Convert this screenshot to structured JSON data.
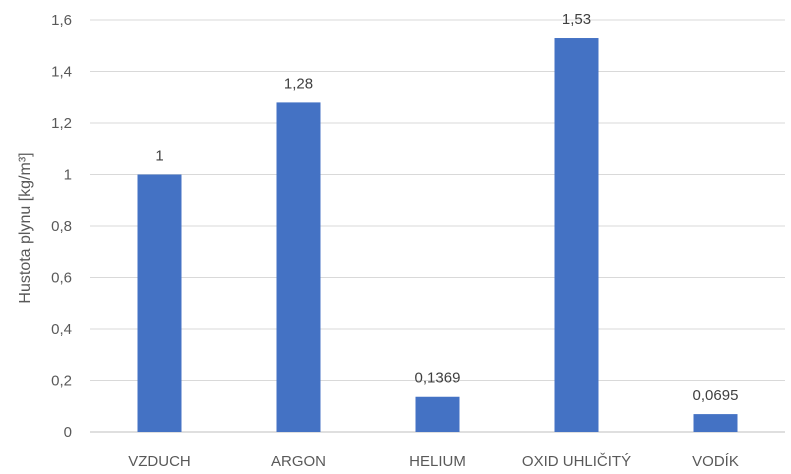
{
  "chart_data": {
    "type": "bar",
    "categories": [
      "VZDUCH",
      "ARGON",
      "HELIUM",
      "OXID UHLIČITÝ",
      "VODÍK"
    ],
    "values": [
      1,
      1.28,
      0.1369,
      1.53,
      0.0695
    ],
    "data_labels": [
      "1",
      "1,28",
      "0,1369",
      "1,53",
      "0,0695"
    ],
    "ylabel": "Hustota plynu [kg/m³]",
    "ylim": [
      0,
      1.6
    ],
    "yticks": [
      0,
      0.2,
      0.4,
      0.6,
      0.8,
      1,
      1.2,
      1.4,
      1.6
    ],
    "ytick_labels": [
      "0",
      "0,2",
      "0,4",
      "0,6",
      "0,8",
      "1",
      "1,2",
      "1,4",
      "1,6"
    ],
    "bar_color": "#4472c4",
    "grid": true
  }
}
